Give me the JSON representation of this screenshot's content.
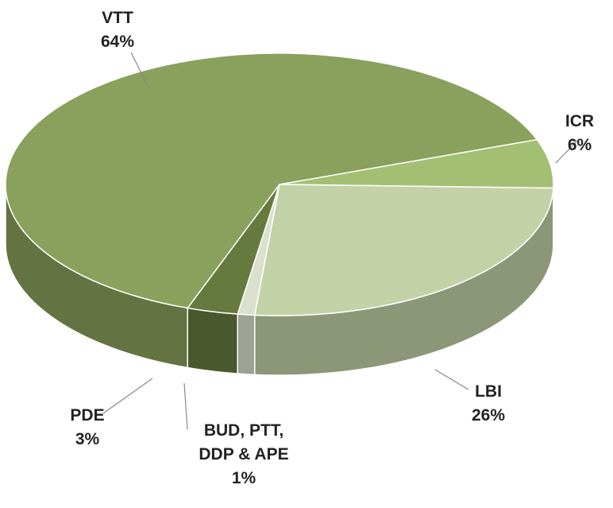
{
  "chart_data": {
    "type": "pie3d",
    "categories": [
      "ICR",
      "LBI",
      "BUD, PTT, DDP & APE",
      "PDE",
      "VTT"
    ],
    "values": [
      6,
      26,
      1,
      3,
      64
    ],
    "value_labels": [
      "6%",
      "26%",
      "1%",
      "3%",
      "64%"
    ],
    "colors": [
      "#a3bf74",
      "#c3d2a6",
      "#d9e1cd",
      "#667a3e",
      "#89a15c"
    ]
  }
}
